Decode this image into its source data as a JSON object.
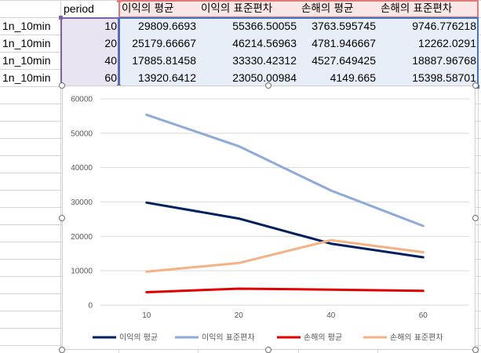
{
  "sheet": {
    "header": {
      "period": "period",
      "cols": [
        "이익의 평균",
        "이익의 표준편차",
        "손해의 평균",
        "손해의 표준편차"
      ]
    },
    "rows": [
      {
        "label": "1n_10min",
        "period": "10",
        "cells": [
          "29809.6693",
          "55366.50055",
          "3763.595745",
          "9746.776218"
        ]
      },
      {
        "label": "1n_10min",
        "period": "20",
        "cells": [
          "25179.66667",
          "46214.56963",
          "4781.946667",
          "12262.0291"
        ]
      },
      {
        "label": "1n_10min",
        "period": "40",
        "cells": [
          "17885.81458",
          "33330.42312",
          "4527.649425",
          "18887.96768"
        ]
      },
      {
        "label": "1n_10min",
        "period": "60",
        "cells": [
          "13920.6412",
          "23050.00984",
          "4149.665",
          "15398.58701"
        ]
      }
    ]
  },
  "colors": {
    "series": [
      "#002060",
      "#8eaadb",
      "#e00000",
      "#f4b183"
    ],
    "purple_border": "#7f5fa8",
    "red_border": "#e07a7a",
    "blue_border": "#4472c4"
  },
  "chart_data": {
    "type": "line",
    "categories": [
      "10",
      "20",
      "40",
      "60"
    ],
    "series": [
      {
        "name": "이익의 평균",
        "values": [
          29809.6693,
          25179.66667,
          17885.81458,
          13920.6412
        ]
      },
      {
        "name": "이익의 표준편차",
        "values": [
          55366.50055,
          46214.56963,
          33330.42312,
          23050.00984
        ]
      },
      {
        "name": "손해의 평균",
        "values": [
          3763.595745,
          4781.946667,
          4527.649425,
          4149.665
        ]
      },
      {
        "name": "손해의 표준편차",
        "values": [
          9746.776218,
          12262.0291,
          18887.96768,
          15398.58701
        ]
      }
    ],
    "y_ticks": [
      "0",
      "10000",
      "20000",
      "30000",
      "40000",
      "50000",
      "60000"
    ],
    "ylim": [
      0,
      60000
    ],
    "grid": true,
    "legend": "bottom",
    "title": ""
  }
}
